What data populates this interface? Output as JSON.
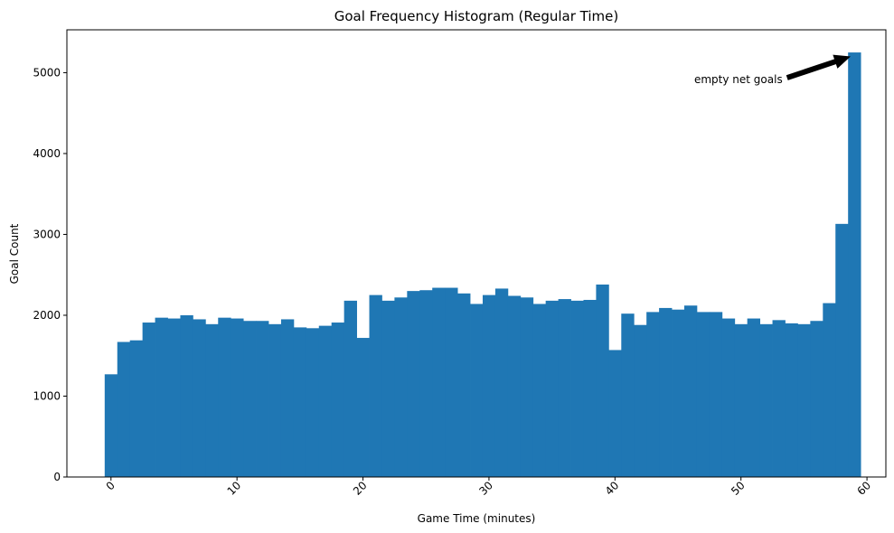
{
  "chart_data": {
    "type": "bar",
    "title": "Goal Frequency Histogram (Regular Time)",
    "xlabel": "Game Time (minutes)",
    "ylabel": "Goal Count",
    "bin_start": -0.5,
    "bin_width": 1,
    "x": [
      0,
      1,
      2,
      3,
      4,
      5,
      6,
      7,
      8,
      9,
      10,
      11,
      12,
      13,
      14,
      15,
      16,
      17,
      18,
      19,
      20,
      21,
      22,
      23,
      24,
      25,
      26,
      27,
      28,
      29,
      30,
      31,
      32,
      33,
      34,
      35,
      36,
      37,
      38,
      39,
      40,
      41,
      42,
      43,
      44,
      45,
      46,
      47,
      48,
      49,
      50,
      51,
      52,
      53,
      54,
      55,
      56,
      57,
      58,
      59
    ],
    "values": [
      1270,
      1670,
      1690,
      1910,
      1970,
      1960,
      2000,
      1950,
      1890,
      1970,
      1960,
      1930,
      1930,
      1890,
      1950,
      1850,
      1840,
      1870,
      1910,
      2180,
      1720,
      2250,
      2180,
      2220,
      2300,
      2310,
      2340,
      2340,
      2270,
      2140,
      2250,
      2330,
      2240,
      2220,
      2140,
      2180,
      2200,
      2180,
      2190,
      2380,
      1570,
      2020,
      1880,
      2040,
      2090,
      2070,
      2120,
      2040,
      2040,
      1960,
      1890,
      1960,
      1890,
      1940,
      1900,
      1890,
      1930,
      2150,
      3130,
      5250
    ],
    "xlim": [
      -3.5,
      61.5
    ],
    "ylim": [
      0,
      5530
    ],
    "xticks": [
      0,
      10,
      20,
      30,
      40,
      50,
      60
    ],
    "xtick_labels": [
      "0",
      "10",
      "20",
      "30",
      "40",
      "50",
      "60"
    ],
    "yticks": [
      0,
      1000,
      2000,
      3000,
      4000,
      5000
    ],
    "ytick_labels": [
      "0",
      "1000",
      "2000",
      "3000",
      "4000",
      "5000"
    ],
    "grid": false,
    "bar_color": "#1f77b4",
    "annotation": {
      "text": "empty net goals",
      "text_x": 53.3,
      "text_y": 4870,
      "arrow_tip_x": 58.7,
      "arrow_tip_y": 5200
    }
  }
}
